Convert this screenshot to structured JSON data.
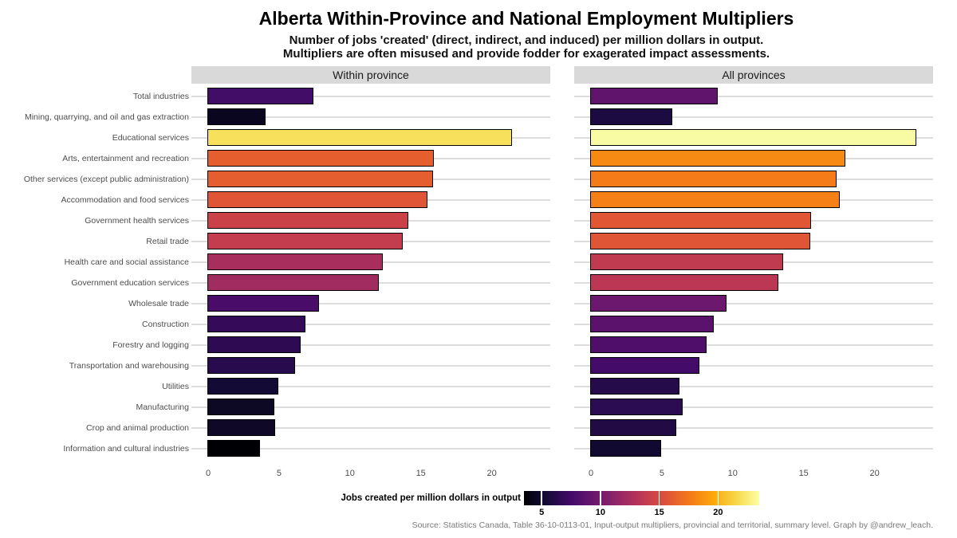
{
  "title": "Alberta Within-Province and National Employment Multipliers",
  "subtitle_line1": "Number of jobs 'created' (direct, indirect, and induced) per million dollars in output.",
  "subtitle_line2": "Multipliers are often misused and provide fodder for exagerated impact assessments.",
  "caption": "Source: Statistics Canada, Table 36-10-0113-01, Input-output multipliers, provincial and territorial, summary level. Graph by @andrew_leach.",
  "legend": {
    "title": "Jobs created per million dollars in output",
    "ticks": [
      5,
      10,
      15,
      20
    ],
    "domain": [
      3.5,
      23.5
    ],
    "palette": "inferno",
    "gradient_stops": [
      "#000004",
      "#160b39",
      "#420a68",
      "#6a176e",
      "#932667",
      "#bc3754",
      "#dd513a",
      "#f37819",
      "#fca50a",
      "#f6d746",
      "#fcffa4"
    ]
  },
  "chart_data": {
    "type": "bar",
    "orientation": "horizontal",
    "facets": [
      "Within province",
      "All provinces"
    ],
    "categories": [
      "Total industries",
      "Mining, quarrying, and oil and gas extraction",
      "Educational services",
      "Arts, entertainment and recreation",
      "Other services (except public administration)",
      "Accommodation and food services",
      "Government health services",
      "Retail trade",
      "Health care and social assistance",
      "Government education services",
      "Wholesale trade",
      "Construction",
      "Forestry and logging",
      "Transportation and warehousing",
      "Utilities",
      "Manufacturing",
      "Crop and animal production",
      "Information and cultural industries"
    ],
    "series": [
      {
        "name": "Within province",
        "values": [
          7.5,
          4.1,
          21.5,
          16.0,
          15.9,
          15.5,
          14.2,
          13.8,
          12.4,
          12.1,
          7.9,
          6.9,
          6.6,
          6.2,
          5.0,
          4.7,
          4.8,
          3.7
        ],
        "colors": [
          "#420d67",
          "#0a0620",
          "#f7e05b",
          "#e55f2e",
          "#e45e30",
          "#df5536",
          "#ca4248",
          "#c43d4e",
          "#a82f5d",
          "#a12c60",
          "#490c69",
          "#340a59",
          "#2e0a53",
          "#270b4c",
          "#130b36",
          "#0d0824",
          "#0f0827",
          "#000004"
        ]
      },
      {
        "name": "All provinces",
        "values": [
          9.0,
          5.8,
          23.0,
          18.0,
          17.4,
          17.6,
          15.6,
          15.5,
          13.6,
          13.3,
          9.6,
          8.7,
          8.2,
          7.7,
          6.3,
          6.5,
          6.1,
          5.0
        ],
        "colors": [
          "#60146c",
          "#1c0b40",
          "#f8fba3",
          "#f78a13",
          "#f47b18",
          "#f58116",
          "#e15635",
          "#df5536",
          "#c03a50",
          "#bc3754",
          "#6c186e",
          "#5a126c",
          "#4f0e6a",
          "#450b68",
          "#250b49",
          "#2b0b51",
          "#220b45",
          "#110930"
        ]
      }
    ],
    "x_ticks": [
      0,
      5,
      10,
      15,
      20
    ],
    "x_range": [
      0,
      24.3
    ],
    "xlabel": "",
    "ylabel": "",
    "grid": "horizontal-major",
    "legend_position": "bottom",
    "color_scale": {
      "palette": "inferno",
      "domain": [
        3.7,
        23.0
      ]
    }
  }
}
